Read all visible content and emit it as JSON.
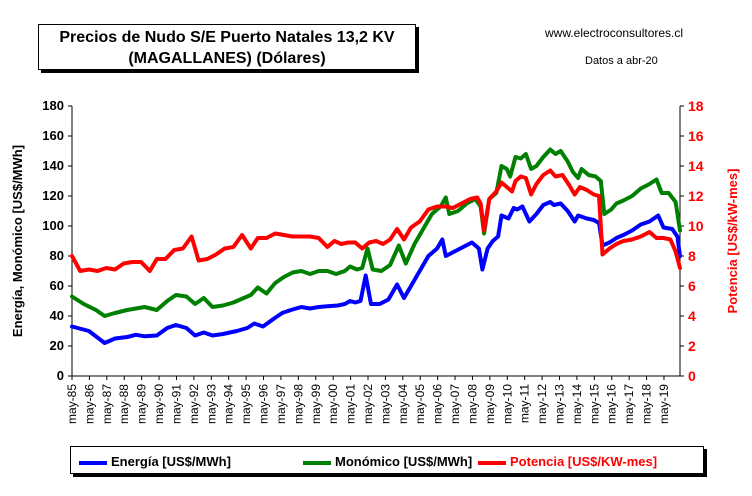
{
  "header": {
    "title_line1": "Precios de Nudo S/E Puerto Natales 13,2 KV",
    "title_line2": "(MAGALLANES) (Dólares)",
    "source": "www.electroconsultores.cl",
    "dates_note": "Datos a abr-20"
  },
  "chart_data": {
    "type": "line",
    "ylabel_left": "Energía, Monómico  [US$/MWh]",
    "ylabel_right": "Potencia  [US$/kW-mes]",
    "ylim_left": [
      0,
      180
    ],
    "ylim_right": [
      0,
      18
    ],
    "yticks_left": [
      "0",
      "20",
      "40",
      "60",
      "80",
      "100",
      "120",
      "140",
      "160",
      "180"
    ],
    "yticks_right": [
      "0",
      "2",
      "4",
      "6",
      "8",
      "10",
      "12",
      "14",
      "16",
      "18"
    ],
    "xlim": [
      1985.33,
      2020.25
    ],
    "x_tick_labels": [
      "may-85",
      "may-86",
      "may-87",
      "may-88",
      "may-89",
      "may-90",
      "may-91",
      "may-92",
      "may-93",
      "may-94",
      "may-95",
      "may-96",
      "may-97",
      "may-98",
      "may-99",
      "may-00",
      "may-01",
      "may-02",
      "may-03",
      "may-04",
      "may-05",
      "may-06",
      "may-07",
      "may-08",
      "may-09",
      "may-10",
      "may-11",
      "may-12",
      "may-13",
      "may-14",
      "may-15",
      "may-16",
      "may-17",
      "may-18",
      "may-19"
    ],
    "grid": false,
    "legend_position": "bottom",
    "series": [
      {
        "name": "Energía [US$/MWh]",
        "axis": "left",
        "color": "#0000ff",
        "points": [
          [
            1985.33,
            33
          ],
          [
            1986.3,
            30
          ],
          [
            1987.2,
            22
          ],
          [
            1987.8,
            25
          ],
          [
            1988.5,
            26
          ],
          [
            1989.0,
            27.5
          ],
          [
            1989.5,
            26.5
          ],
          [
            1990.2,
            27
          ],
          [
            1990.8,
            32
          ],
          [
            1991.3,
            34
          ],
          [
            1991.9,
            32
          ],
          [
            1992.4,
            27
          ],
          [
            1992.9,
            29
          ],
          [
            1993.4,
            27
          ],
          [
            1994.0,
            28
          ],
          [
            1994.8,
            30
          ],
          [
            1995.4,
            32
          ],
          [
            1995.8,
            35
          ],
          [
            1996.3,
            33
          ],
          [
            1996.9,
            38
          ],
          [
            1997.4,
            42
          ],
          [
            1997.9,
            44
          ],
          [
            1998.5,
            46
          ],
          [
            1999.0,
            45
          ],
          [
            1999.5,
            46
          ],
          [
            2000.0,
            46.5
          ],
          [
            2000.6,
            47
          ],
          [
            2001.0,
            48
          ],
          [
            2001.3,
            50
          ],
          [
            2001.6,
            49
          ],
          [
            2001.9,
            50
          ],
          [
            2002.2,
            67
          ],
          [
            2002.5,
            48
          ],
          [
            2003.0,
            48
          ],
          [
            2003.5,
            51
          ],
          [
            2004.0,
            61
          ],
          [
            2004.4,
            52
          ],
          [
            2004.8,
            60
          ],
          [
            2005.3,
            70
          ],
          [
            2005.8,
            80
          ],
          [
            2006.3,
            85
          ],
          [
            2006.6,
            91
          ],
          [
            2006.8,
            80
          ],
          [
            2007.3,
            83
          ],
          [
            2007.8,
            86
          ],
          [
            2008.3,
            89
          ],
          [
            2008.7,
            85
          ],
          [
            2008.9,
            71
          ],
          [
            2009.2,
            85
          ],
          [
            2009.5,
            90
          ],
          [
            2009.8,
            93
          ],
          [
            2010.0,
            107
          ],
          [
            2010.4,
            105
          ],
          [
            2010.7,
            112
          ],
          [
            2010.9,
            111
          ],
          [
            2011.2,
            113
          ],
          [
            2011.6,
            103
          ],
          [
            2012.0,
            108
          ],
          [
            2012.4,
            114
          ],
          [
            2012.8,
            116
          ],
          [
            2013.0,
            114
          ],
          [
            2013.4,
            115
          ],
          [
            2013.8,
            110
          ],
          [
            2014.2,
            103
          ],
          [
            2014.4,
            107
          ],
          [
            2014.9,
            105
          ],
          [
            2015.3,
            104
          ],
          [
            2015.6,
            102
          ],
          [
            2015.8,
            87
          ],
          [
            2016.2,
            89
          ],
          [
            2016.6,
            92
          ],
          [
            2017.0,
            94
          ],
          [
            2017.5,
            97
          ],
          [
            2018.0,
            101
          ],
          [
            2018.5,
            103
          ],
          [
            2019.0,
            107
          ],
          [
            2019.3,
            99
          ],
          [
            2019.8,
            98
          ],
          [
            2020.1,
            93
          ],
          [
            2020.25,
            80
          ]
        ]
      },
      {
        "name": "Monómico [US$/MWh]",
        "axis": "left",
        "color": "#008000",
        "points": [
          [
            1985.33,
            53
          ],
          [
            1986.0,
            48
          ],
          [
            1986.7,
            44
          ],
          [
            1987.2,
            40
          ],
          [
            1987.8,
            42
          ],
          [
            1988.5,
            44
          ],
          [
            1989.0,
            45
          ],
          [
            1989.5,
            46
          ],
          [
            1990.2,
            44
          ],
          [
            1990.8,
            50
          ],
          [
            1991.3,
            54
          ],
          [
            1991.9,
            53
          ],
          [
            1992.4,
            48
          ],
          [
            1992.9,
            52
          ],
          [
            1993.4,
            46
          ],
          [
            1994.0,
            47
          ],
          [
            1994.6,
            49
          ],
          [
            1995.2,
            52
          ],
          [
            1995.6,
            54
          ],
          [
            1996.0,
            59
          ],
          [
            1996.5,
            55
          ],
          [
            1997.0,
            62
          ],
          [
            1997.5,
            66
          ],
          [
            1998.0,
            69
          ],
          [
            1998.5,
            70
          ],
          [
            1999.0,
            68
          ],
          [
            1999.5,
            70
          ],
          [
            2000.0,
            70
          ],
          [
            2000.5,
            68
          ],
          [
            2001.0,
            70
          ],
          [
            2001.3,
            73
          ],
          [
            2001.7,
            71
          ],
          [
            2002.0,
            72
          ],
          [
            2002.3,
            85
          ],
          [
            2002.6,
            71
          ],
          [
            2003.1,
            70
          ],
          [
            2003.6,
            74
          ],
          [
            2004.1,
            87
          ],
          [
            2004.5,
            75
          ],
          [
            2005.0,
            88
          ],
          [
            2005.5,
            98
          ],
          [
            2006.0,
            108
          ],
          [
            2006.5,
            113
          ],
          [
            2006.8,
            119
          ],
          [
            2007.0,
            108
          ],
          [
            2007.5,
            110
          ],
          [
            2008.0,
            115
          ],
          [
            2008.5,
            118
          ],
          [
            2008.8,
            113
          ],
          [
            2009.0,
            95
          ],
          [
            2009.3,
            118
          ],
          [
            2009.7,
            122
          ],
          [
            2010.0,
            140
          ],
          [
            2010.3,
            138
          ],
          [
            2010.5,
            133
          ],
          [
            2010.8,
            146
          ],
          [
            2011.1,
            145
          ],
          [
            2011.4,
            148
          ],
          [
            2011.7,
            138
          ],
          [
            2012.0,
            140
          ],
          [
            2012.4,
            146
          ],
          [
            2012.8,
            151
          ],
          [
            2013.1,
            148
          ],
          [
            2013.4,
            150
          ],
          [
            2013.8,
            143
          ],
          [
            2014.1,
            136
          ],
          [
            2014.4,
            132
          ],
          [
            2014.6,
            138
          ],
          [
            2015.0,
            134
          ],
          [
            2015.4,
            133
          ],
          [
            2015.7,
            130
          ],
          [
            2015.9,
            108
          ],
          [
            2016.3,
            111
          ],
          [
            2016.6,
            115
          ],
          [
            2017.0,
            117
          ],
          [
            2017.5,
            120
          ],
          [
            2018.0,
            125
          ],
          [
            2018.5,
            128
          ],
          [
            2018.9,
            131
          ],
          [
            2019.2,
            122
          ],
          [
            2019.6,
            122
          ],
          [
            2020.0,
            116
          ],
          [
            2020.25,
            97
          ]
        ]
      },
      {
        "name": "Potencia [US$/KW-mes]",
        "axis": "right",
        "color": "#ff0000",
        "points": [
          [
            1985.33,
            8.0
          ],
          [
            1985.8,
            7.0
          ],
          [
            1986.3,
            7.1
          ],
          [
            1986.8,
            7.0
          ],
          [
            1987.3,
            7.2
          ],
          [
            1987.8,
            7.1
          ],
          [
            1988.3,
            7.5
          ],
          [
            1988.8,
            7.6
          ],
          [
            1989.3,
            7.6
          ],
          [
            1989.8,
            7.0
          ],
          [
            1990.2,
            7.8
          ],
          [
            1990.7,
            7.8
          ],
          [
            1991.2,
            8.4
          ],
          [
            1991.7,
            8.5
          ],
          [
            1992.2,
            9.3
          ],
          [
            1992.6,
            7.7
          ],
          [
            1993.1,
            7.8
          ],
          [
            1993.6,
            8.1
          ],
          [
            1994.1,
            8.5
          ],
          [
            1994.6,
            8.6
          ],
          [
            1995.1,
            9.4
          ],
          [
            1995.6,
            8.5
          ],
          [
            1996.0,
            9.2
          ],
          [
            1996.5,
            9.2
          ],
          [
            1997.0,
            9.5
          ],
          [
            1997.5,
            9.4
          ],
          [
            1998.0,
            9.3
          ],
          [
            1998.5,
            9.3
          ],
          [
            1999.0,
            9.3
          ],
          [
            1999.5,
            9.2
          ],
          [
            2000.0,
            8.6
          ],
          [
            2000.4,
            9.0
          ],
          [
            2000.8,
            8.8
          ],
          [
            2001.2,
            8.9
          ],
          [
            2001.6,
            8.9
          ],
          [
            2002.0,
            8.5
          ],
          [
            2002.4,
            8.9
          ],
          [
            2002.8,
            9.0
          ],
          [
            2003.2,
            8.8
          ],
          [
            2003.6,
            9.1
          ],
          [
            2004.0,
            9.8
          ],
          [
            2004.4,
            9.1
          ],
          [
            2004.8,
            9.9
          ],
          [
            2005.3,
            10.3
          ],
          [
            2005.8,
            11.1
          ],
          [
            2006.3,
            11.3
          ],
          [
            2006.8,
            11.3
          ],
          [
            2007.2,
            11.2
          ],
          [
            2007.7,
            11.5
          ],
          [
            2008.2,
            11.8
          ],
          [
            2008.6,
            11.9
          ],
          [
            2008.8,
            11.5
          ],
          [
            2009.0,
            9.7
          ],
          [
            2009.3,
            11.8
          ],
          [
            2009.7,
            12.3
          ],
          [
            2010.0,
            12.9
          ],
          [
            2010.3,
            12.6
          ],
          [
            2010.6,
            12.3
          ],
          [
            2010.8,
            13.0
          ],
          [
            2011.1,
            13.3
          ],
          [
            2011.4,
            13.2
          ],
          [
            2011.7,
            12.1
          ],
          [
            2012.0,
            12.8
          ],
          [
            2012.4,
            13.4
          ],
          [
            2012.8,
            13.7
          ],
          [
            2013.1,
            13.3
          ],
          [
            2013.5,
            13.4
          ],
          [
            2013.9,
            12.7
          ],
          [
            2014.2,
            12.1
          ],
          [
            2014.5,
            12.6
          ],
          [
            2014.9,
            12.4
          ],
          [
            2015.3,
            12.1
          ],
          [
            2015.6,
            12.0
          ],
          [
            2015.8,
            8.1
          ],
          [
            2016.2,
            8.5
          ],
          [
            2016.6,
            8.8
          ],
          [
            2017.0,
            9.0
          ],
          [
            2017.5,
            9.1
          ],
          [
            2018.0,
            9.3
          ],
          [
            2018.5,
            9.6
          ],
          [
            2018.9,
            9.2
          ],
          [
            2019.3,
            9.2
          ],
          [
            2019.7,
            9.1
          ],
          [
            2020.0,
            8.3
          ],
          [
            2020.25,
            7.2
          ]
        ]
      }
    ]
  }
}
